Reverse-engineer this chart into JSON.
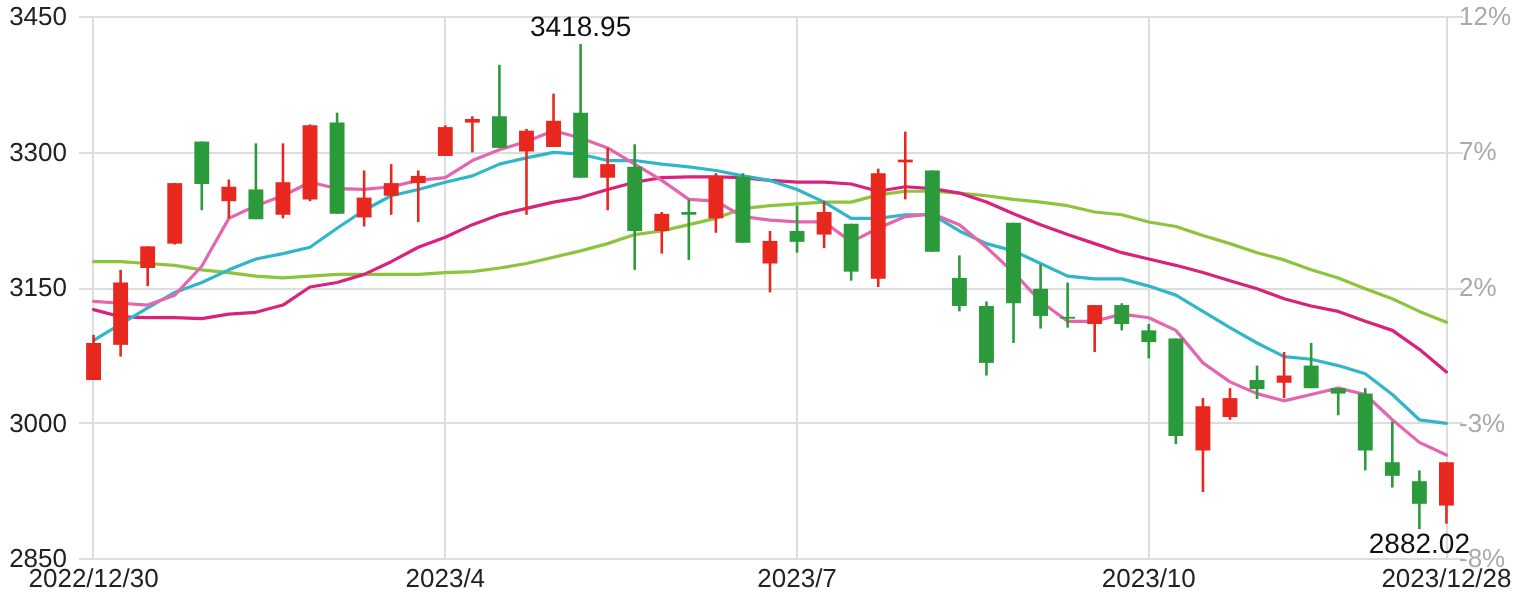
{
  "chart_data": {
    "type": "candlestick",
    "categories": [
      "2022/12/30",
      null,
      null,
      null,
      null,
      null,
      null,
      null,
      null,
      null,
      null,
      null,
      null,
      "2023/4",
      null,
      null,
      null,
      null,
      null,
      null,
      null,
      null,
      null,
      null,
      null,
      null,
      "2023/7",
      null,
      null,
      null,
      null,
      null,
      null,
      null,
      null,
      null,
      null,
      null,
      null,
      "2023/10",
      null,
      null,
      null,
      null,
      null,
      null,
      null,
      null,
      null,
      null,
      "2023/12/28"
    ],
    "ohlc": [
      [
        3047,
        3097,
        3047,
        3088
      ],
      [
        3086,
        3169,
        3073,
        3155
      ],
      [
        3171,
        3195,
        3151,
        3195
      ],
      [
        3198,
        3265,
        3197,
        3265
      ],
      [
        3311,
        3311,
        3235,
        3264
      ],
      [
        3245,
        3269,
        3226,
        3261
      ],
      [
        3258,
        3309,
        3225,
        3225
      ],
      [
        3230,
        3309,
        3226,
        3266
      ],
      [
        3247,
        3330,
        3245,
        3329
      ],
      [
        3332,
        3343,
        3231,
        3231
      ],
      [
        3227,
        3279,
        3217,
        3249
      ],
      [
        3251,
        3286,
        3230,
        3265
      ],
      [
        3265,
        3279,
        3222,
        3273
      ],
      [
        3295,
        3329,
        3295,
        3327
      ],
      [
        3332,
        3339,
        3299,
        3336
      ],
      [
        3339,
        3396,
        3304,
        3304
      ],
      [
        3300,
        3325,
        3230,
        3323
      ],
      [
        3305,
        3364,
        3305,
        3334
      ],
      [
        3343,
        3418.95,
        3271,
        3271
      ],
      [
        3271,
        3304,
        3235,
        3286
      ],
      [
        3283,
        3308,
        3169,
        3212
      ],
      [
        3212,
        3233,
        3187,
        3231
      ],
      [
        3233,
        3247,
        3180,
        3230
      ],
      [
        3226,
        3276,
        3210,
        3273
      ],
      [
        3272,
        3276,
        3199,
        3199
      ],
      [
        3176,
        3212,
        3144,
        3201
      ],
      [
        3212,
        3240,
        3188,
        3200
      ],
      [
        3208,
        3245,
        3193,
        3233
      ],
      [
        3220,
        3220,
        3157,
        3167
      ],
      [
        3159,
        3281,
        3150,
        3276
      ],
      [
        3288,
        3322,
        3247,
        3291
      ],
      [
        3279,
        3279,
        3189,
        3189
      ],
      [
        3160,
        3185,
        3123,
        3129
      ],
      [
        3129,
        3134,
        3052,
        3066
      ],
      [
        3221,
        3221,
        3088,
        3132
      ],
      [
        3148,
        3175,
        3104,
        3118
      ],
      [
        3117,
        3155,
        3105,
        3115
      ],
      [
        3109,
        3130,
        3078,
        3130
      ],
      [
        3130,
        3132,
        3102,
        3109
      ],
      [
        3102,
        3109,
        3071,
        3089
      ],
      [
        3093,
        3093,
        2976,
        2985
      ],
      [
        2969,
        3027,
        2923,
        3018
      ],
      [
        3006,
        3038,
        3003,
        3027
      ],
      [
        3047,
        3063,
        3026,
        3037
      ],
      [
        3044,
        3078,
        3027,
        3052
      ],
      [
        3063,
        3088,
        3038,
        3038
      ],
      [
        3038,
        3038,
        3008,
        3032
      ],
      [
        3032,
        3038,
        2947,
        2969
      ],
      [
        2956,
        3001,
        2928,
        2941
      ],
      [
        2935,
        2947,
        2882.02,
        2910
      ],
      [
        2908,
        2956,
        2888,
        2956
      ]
    ],
    "colors": [
      "#e8281e",
      "#e8281e",
      "#e8281e",
      "#e8281e",
      "#2a9a3a",
      "#e8281e",
      "#2a9a3a",
      "#e8281e",
      "#e8281e",
      "#2a9a3a",
      "#e8281e",
      "#e8281e",
      "#e8281e",
      "#e8281e",
      "#e8281e",
      "#2a9a3a",
      "#e8281e",
      "#e8281e",
      "#2a9a3a",
      "#e8281e",
      "#2a9a3a",
      "#e8281e",
      "#2a9a3a",
      "#e8281e",
      "#2a9a3a",
      "#e8281e",
      "#2a9a3a",
      "#e8281e",
      "#2a9a3a",
      "#e8281e",
      "#e8281e",
      "#2a9a3a",
      "#2a9a3a",
      "#2a9a3a",
      "#2a9a3a",
      "#2a9a3a",
      "#2a9a3a",
      "#e8281e",
      "#2a9a3a",
      "#2a9a3a",
      "#2a9a3a",
      "#e8281e",
      "#e8281e",
      "#2a9a3a",
      "#e8281e",
      "#2a9a3a",
      "#2a9a3a",
      "#2a9a3a",
      "#2a9a3a",
      "#2a9a3a",
      "#e8281e"
    ],
    "series": [
      {
        "type": "line",
        "color": "#8cc43c",
        "values": [
          3178,
          3178,
          3176,
          3174,
          3169,
          3166,
          3162,
          3160,
          3162,
          3164,
          3164,
          3164,
          3164,
          3166,
          3167,
          3171,
          3176,
          3183,
          3190,
          3198,
          3208,
          3212,
          3219,
          3226,
          3237,
          3240,
          3242,
          3244,
          3244,
          3252,
          3256,
          3256,
          3254,
          3251,
          3247,
          3244,
          3240,
          3233,
          3230,
          3222,
          3217,
          3207,
          3198,
          3188,
          3180,
          3169,
          3160,
          3148,
          3137,
          3123,
          3111
        ]
      },
      {
        "type": "line",
        "color": "#d8227e",
        "values": [
          3125,
          3117,
          3116,
          3116,
          3115,
          3120,
          3122,
          3130,
          3150,
          3155,
          3164,
          3178,
          3194,
          3205,
          3219,
          3230,
          3237,
          3244,
          3249,
          3258,
          3266,
          3271,
          3272,
          3272,
          3271,
          3268,
          3266,
          3266,
          3264,
          3256,
          3261,
          3259,
          3254,
          3244,
          3231,
          3219,
          3208,
          3198,
          3188,
          3181,
          3174,
          3166,
          3157,
          3148,
          3137,
          3129,
          3123,
          3112,
          3102,
          3081,
          3056
        ]
      },
      {
        "type": "line",
        "color": "#2fb6c8",
        "values": [
          3091,
          3109,
          3127,
          3144,
          3155,
          3169,
          3181,
          3187,
          3194,
          3215,
          3235,
          3251,
          3258,
          3266,
          3273,
          3286,
          3293,
          3299,
          3297,
          3290,
          3290,
          3286,
          3283,
          3279,
          3273,
          3268,
          3258,
          3244,
          3226,
          3226,
          3230,
          3230,
          3212,
          3198,
          3190,
          3176,
          3162,
          3159,
          3159,
          3151,
          3141,
          3123,
          3105,
          3088,
          3073,
          3070,
          3063,
          3054,
          3031,
          3003,
          2999
        ]
      },
      {
        "type": "line",
        "color": "#e466b0",
        "values": [
          3134,
          3132,
          3130,
          3141,
          3173,
          3226,
          3240,
          3251,
          3266,
          3259,
          3258,
          3261,
          3268,
          3271,
          3290,
          3302,
          3311,
          3323,
          3315,
          3304,
          3286,
          3268,
          3247,
          3245,
          3228,
          3224,
          3222,
          3222,
          3200,
          3215,
          3228,
          3231,
          3219,
          3194,
          3166,
          3134,
          3112,
          3112,
          3120,
          3116,
          3102,
          3066,
          3045,
          3032,
          3024,
          3031,
          3038,
          3031,
          3003,
          2978,
          2964
        ]
      }
    ],
    "ylim": [
      2850,
      3450
    ],
    "yticks": [
      2850,
      3000,
      3150,
      3300,
      3450
    ],
    "y2lim": [
      -7.62,
      11.83
    ],
    "y2ticks": [
      {
        "value": -7.62,
        "label": "-8%"
      },
      {
        "value": -2.76,
        "label": "-3%"
      },
      {
        "value": 2.11,
        "label": "2%"
      },
      {
        "value": 6.97,
        "label": "7%"
      },
      {
        "value": 11.83,
        "label": "12%"
      }
    ],
    "annotations": [
      {
        "text": "3418.95",
        "y": 3418.95
      },
      {
        "text": "2882.02",
        "y": 2882.02
      }
    ],
    "grid": true
  }
}
